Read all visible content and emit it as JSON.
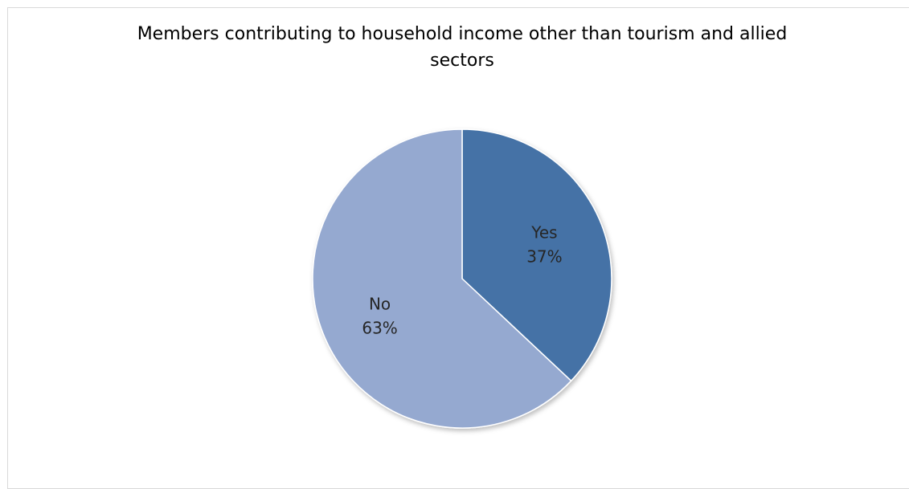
{
  "chart_data": {
    "type": "pie",
    "title": "Members contributing to household income other than tourism and allied sectors",
    "categories": [
      "Yes",
      "No"
    ],
    "values": [
      37,
      63
    ],
    "labels": [
      "Yes\n37%",
      "No\n63%"
    ],
    "percent_labels": [
      "37%",
      "63%"
    ],
    "colors": [
      "#4472A6",
      "#95A9D0"
    ],
    "start_angle_deg": 0,
    "direction": "clockwise",
    "legend": "none"
  }
}
